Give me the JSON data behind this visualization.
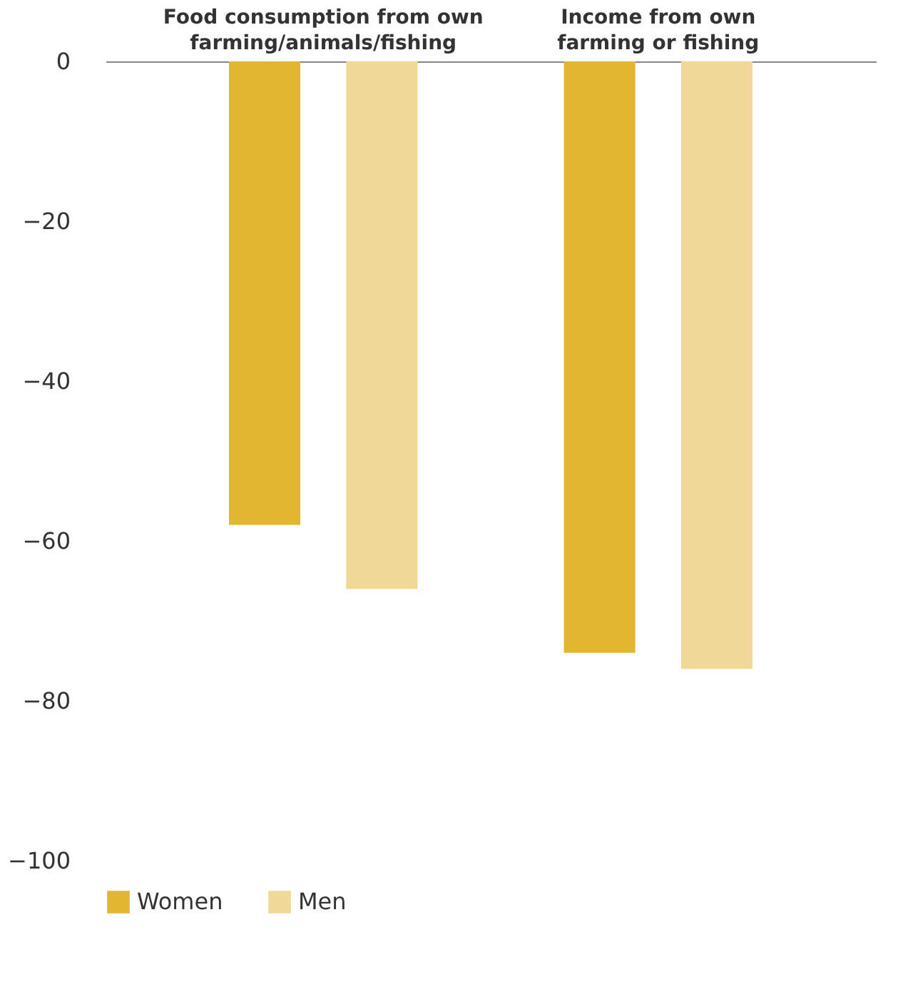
{
  "chart_data": {
    "type": "bar",
    "categories": [
      "Food consumption from own farming/animals/fishing",
      "Income from own farming or fishing"
    ],
    "series": [
      {
        "name": "Women",
        "color": "#e3b632",
        "values": [
          -58,
          -74
        ]
      },
      {
        "name": "Men",
        "color": "#f0d898",
        "values": [
          -66,
          -76
        ]
      }
    ],
    "ylim": [
      -100,
      0
    ],
    "yticks": [
      0,
      -20,
      -40,
      -60,
      -80,
      -100
    ],
    "grid": false,
    "legend": "bottom left"
  }
}
